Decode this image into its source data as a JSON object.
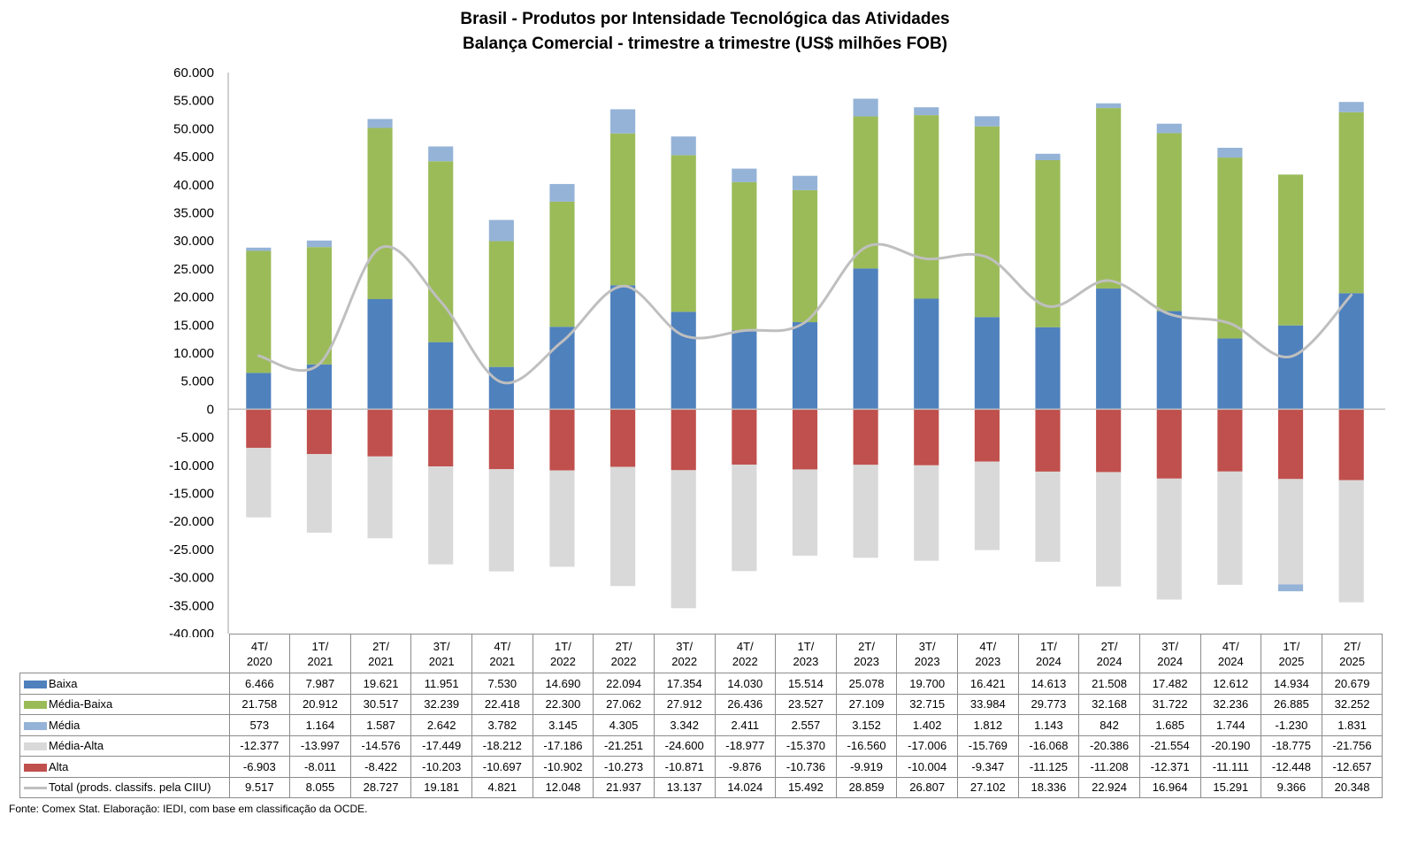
{
  "chart_data": {
    "type": "bar",
    "stacked": true,
    "title": "Brasil - Produtos por Intensidade Tecnológica das Atividades",
    "subtitle": "Balança Comercial - trimestre a trimestre (US$ milhões FOB)",
    "xlabel": "",
    "ylabel": "",
    "ylim": [
      -40000,
      60000
    ],
    "yticks": [
      60000,
      55000,
      50000,
      45000,
      40000,
      35000,
      30000,
      25000,
      20000,
      15000,
      10000,
      5000,
      0,
      -5000,
      -10000,
      -15000,
      -20000,
      -25000,
      -30000,
      -35000,
      -40000
    ],
    "ytick_labels": [
      "60.000",
      "55.000",
      "50.000",
      "45.000",
      "40.000",
      "35.000",
      "30.000",
      "25.000",
      "20.000",
      "15.000",
      "10.000",
      "5.000",
      "0",
      "-5.000",
      "-10.000",
      "-15.000",
      "-20.000",
      "-25.000",
      "-30.000",
      "-35.000",
      "-40.000"
    ],
    "grid": false,
    "legend_placement": "data-table-bottom",
    "categories": [
      [
        "4T/",
        "2020"
      ],
      [
        "1T/",
        "2021"
      ],
      [
        "2T/",
        "2021"
      ],
      [
        "3T/",
        "2021"
      ],
      [
        "4T/",
        "2021"
      ],
      [
        "1T/",
        "2022"
      ],
      [
        "2T/",
        "2022"
      ],
      [
        "3T/",
        "2022"
      ],
      [
        "4T/",
        "2022"
      ],
      [
        "1T/",
        "2023"
      ],
      [
        "2T/",
        "2023"
      ],
      [
        "3T/",
        "2023"
      ],
      [
        "4T/",
        "2023"
      ],
      [
        "1T/",
        "2024"
      ],
      [
        "2T/",
        "2024"
      ],
      [
        "3T/",
        "2024"
      ],
      [
        "4T/",
        "2024"
      ],
      [
        "1T/",
        "2025"
      ],
      [
        "2T/",
        "2025"
      ]
    ],
    "series": [
      {
        "name": "Baixa",
        "kind": "bar",
        "color": "#4f81bd",
        "values": [
          6466,
          7987,
          19621,
          11951,
          7530,
          14690,
          22094,
          17354,
          14030,
          15514,
          25078,
          19700,
          16421,
          14613,
          21508,
          17482,
          12612,
          14934,
          20679
        ],
        "labels": [
          "6.466",
          "7.987",
          "19.621",
          "11.951",
          "7.530",
          "14.690",
          "22.094",
          "17.354",
          "14.030",
          "15.514",
          "25.078",
          "19.700",
          "16.421",
          "14.613",
          "21.508",
          "17.482",
          "12.612",
          "14.934",
          "20.679"
        ]
      },
      {
        "name": "Média-Baixa",
        "kind": "bar",
        "color": "#9bbb59",
        "values": [
          21758,
          20912,
          30517,
          32239,
          22418,
          22300,
          27062,
          27912,
          26436,
          23527,
          27109,
          32715,
          33984,
          29773,
          32168,
          31722,
          32236,
          26885,
          32252
        ],
        "labels": [
          "21.758",
          "20.912",
          "30.517",
          "32.239",
          "22.418",
          "22.300",
          "27.062",
          "27.912",
          "26.436",
          "23.527",
          "27.109",
          "32.715",
          "33.984",
          "29.773",
          "32.168",
          "31.722",
          "32.236",
          "26.885",
          "32.252"
        ]
      },
      {
        "name": "Média",
        "kind": "bar",
        "color": "#95b3d7",
        "values": [
          573,
          1164,
          1587,
          2642,
          3782,
          3145,
          4305,
          3342,
          2411,
          2557,
          3152,
          1402,
          1812,
          1143,
          842,
          1685,
          1744,
          -1230,
          1831
        ],
        "labels": [
          "573",
          "1.164",
          "1.587",
          "2.642",
          "3.782",
          "3.145",
          "4.305",
          "3.342",
          "2.411",
          "2.557",
          "3.152",
          "1.402",
          "1.812",
          "1.143",
          "842",
          "1.685",
          "1.744",
          "-1.230",
          "1.831"
        ]
      },
      {
        "name": "Média-Alta",
        "kind": "bar",
        "color": "#d9d9d9",
        "values": [
          -12377,
          -13997,
          -14576,
          -17449,
          -18212,
          -17186,
          -21251,
          -24600,
          -18977,
          -15370,
          -16560,
          -17006,
          -15769,
          -16068,
          -20386,
          -21554,
          -20190,
          -18775,
          -21756
        ],
        "labels": [
          "-12.377",
          "-13.997",
          "-14.576",
          "-17.449",
          "-18.212",
          "-17.186",
          "-21.251",
          "-24.600",
          "-18.977",
          "-15.370",
          "-16.560",
          "-17.006",
          "-15.769",
          "-16.068",
          "-20.386",
          "-21.554",
          "-20.190",
          "-18.775",
          "-21.756"
        ]
      },
      {
        "name": "Alta",
        "kind": "bar",
        "color": "#c0504d",
        "values": [
          -6903,
          -8011,
          -8422,
          -10203,
          -10697,
          -10902,
          -10273,
          -10871,
          -9876,
          -10736,
          -9919,
          -10004,
          -9347,
          -11125,
          -11208,
          -12371,
          -11111,
          -12448,
          -12657
        ],
        "labels": [
          "-6.903",
          "-8.011",
          "-8.422",
          "-10.203",
          "-10.697",
          "-10.902",
          "-10.273",
          "-10.871",
          "-9.876",
          "-10.736",
          "-9.919",
          "-10.004",
          "-9.347",
          "-11.125",
          "-11.208",
          "-12.371",
          "-11.111",
          "-12.448",
          "-12.657"
        ]
      },
      {
        "name": "Total (prods. classifs. pela CIIU)",
        "kind": "line",
        "color": "#bfbfbf",
        "values": [
          9517,
          8055,
          28727,
          19181,
          4821,
          12048,
          21937,
          13137,
          14024,
          15492,
          28859,
          26807,
          27102,
          18336,
          22924,
          16964,
          15291,
          9366,
          20348
        ],
        "labels": [
          "9.517",
          "8.055",
          "28.727",
          "19.181",
          "4.821",
          "12.048",
          "21.937",
          "13.137",
          "14.024",
          "15.492",
          "28.859",
          "26.807",
          "27.102",
          "18.336",
          "22.924",
          "16.964",
          "15.291",
          "9.366",
          "20.348"
        ]
      }
    ],
    "source": "Fonte:  Comex Stat. Elaboração: IEDI, com base em classificação da OCDE."
  }
}
